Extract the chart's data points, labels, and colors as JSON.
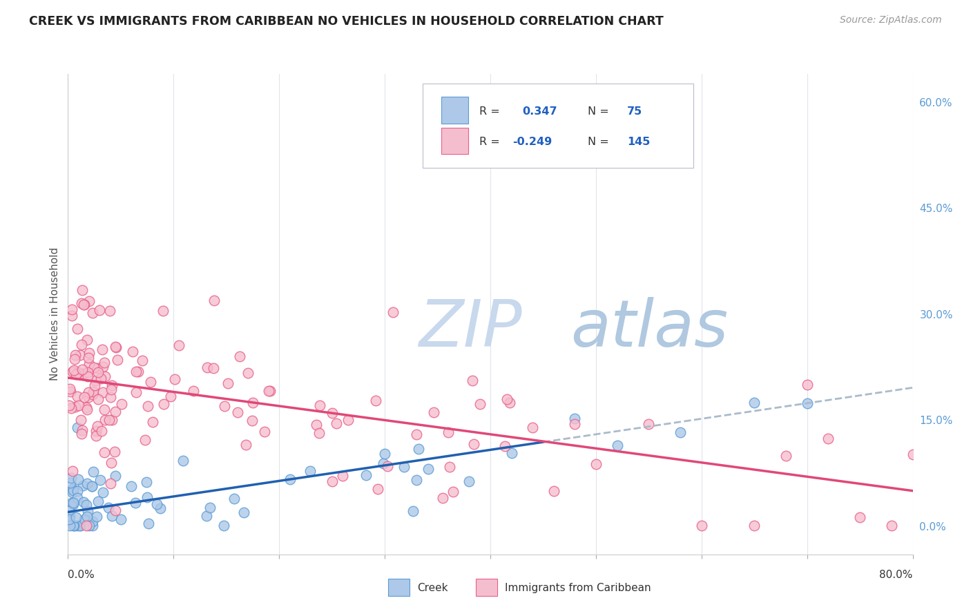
{
  "title": "CREEK VS IMMIGRANTS FROM CARIBBEAN NO VEHICLES IN HOUSEHOLD CORRELATION CHART",
  "source": "Source: ZipAtlas.com",
  "ylabel": "No Vehicles in Household",
  "right_yticks": [
    0.0,
    0.15,
    0.3,
    0.45,
    0.6
  ],
  "right_yticklabels": [
    "0.0%",
    "15.0%",
    "30.0%",
    "45.0%",
    "60.0%"
  ],
  "xmin": 0.0,
  "xmax": 0.8,
  "ymin": -0.04,
  "ymax": 0.64,
  "creek_R": 0.347,
  "creek_N": 75,
  "carib_R": -0.249,
  "carib_N": 145,
  "creek_color": "#adc8e8",
  "creek_edge": "#5b9bd5",
  "carib_color": "#f5bece",
  "carib_edge": "#e8608a",
  "trend_creek_color": "#2060b0",
  "trend_carib_color": "#e04878",
  "trend_creek_intercept": 0.02,
  "trend_creek_slope": 0.22,
  "trend_carib_intercept": 0.21,
  "trend_carib_slope": -0.2,
  "trend_creek_solid_end": 0.45,
  "trend_carib_solid_end": 0.8,
  "watermark_zip_color": "#c8d8ed",
  "watermark_atlas_color": "#b0c8e0",
  "background_color": "#ffffff",
  "grid_color": "#e0e4ea",
  "title_color": "#222222",
  "source_color": "#999999",
  "legend_label_color": "#333333",
  "legend_value_color": "#2060c0",
  "creek_scatter_seed": 42,
  "carib_scatter_seed": 123
}
